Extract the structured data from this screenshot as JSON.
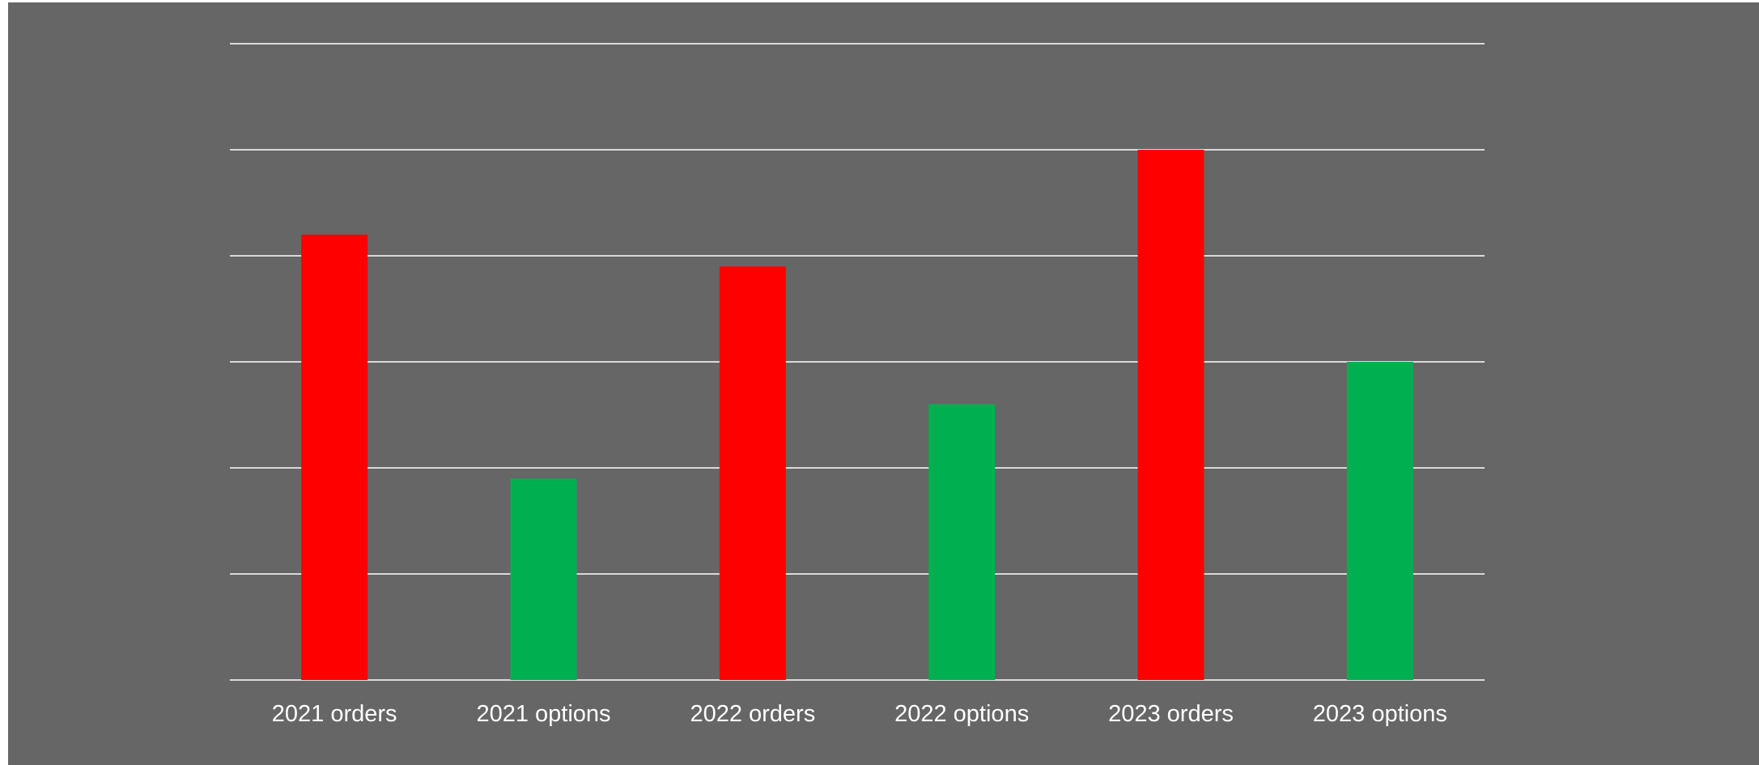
{
  "chart_data": {
    "type": "bar",
    "categories": [
      "2021 orders",
      "2021 options",
      "2022 orders",
      "2022 options",
      "2023 orders",
      "2023 options"
    ],
    "values": [
      4.2,
      1.9,
      3.9,
      2.6,
      5.0,
      3.0
    ],
    "bar_colors": [
      "#ff0000",
      "#00b050",
      "#ff0000",
      "#00b050",
      "#ff0000",
      "#00b050"
    ],
    "title": "",
    "xlabel": "",
    "ylabel": "",
    "ylim": [
      0,
      6
    ],
    "y_gridline_step": 1,
    "grid": true,
    "grid_color": "#d9d9d9",
    "background_color": "#666666",
    "tick_label_color": "#ffffff",
    "y_tick_labels_shown": false,
    "legend": "none"
  }
}
